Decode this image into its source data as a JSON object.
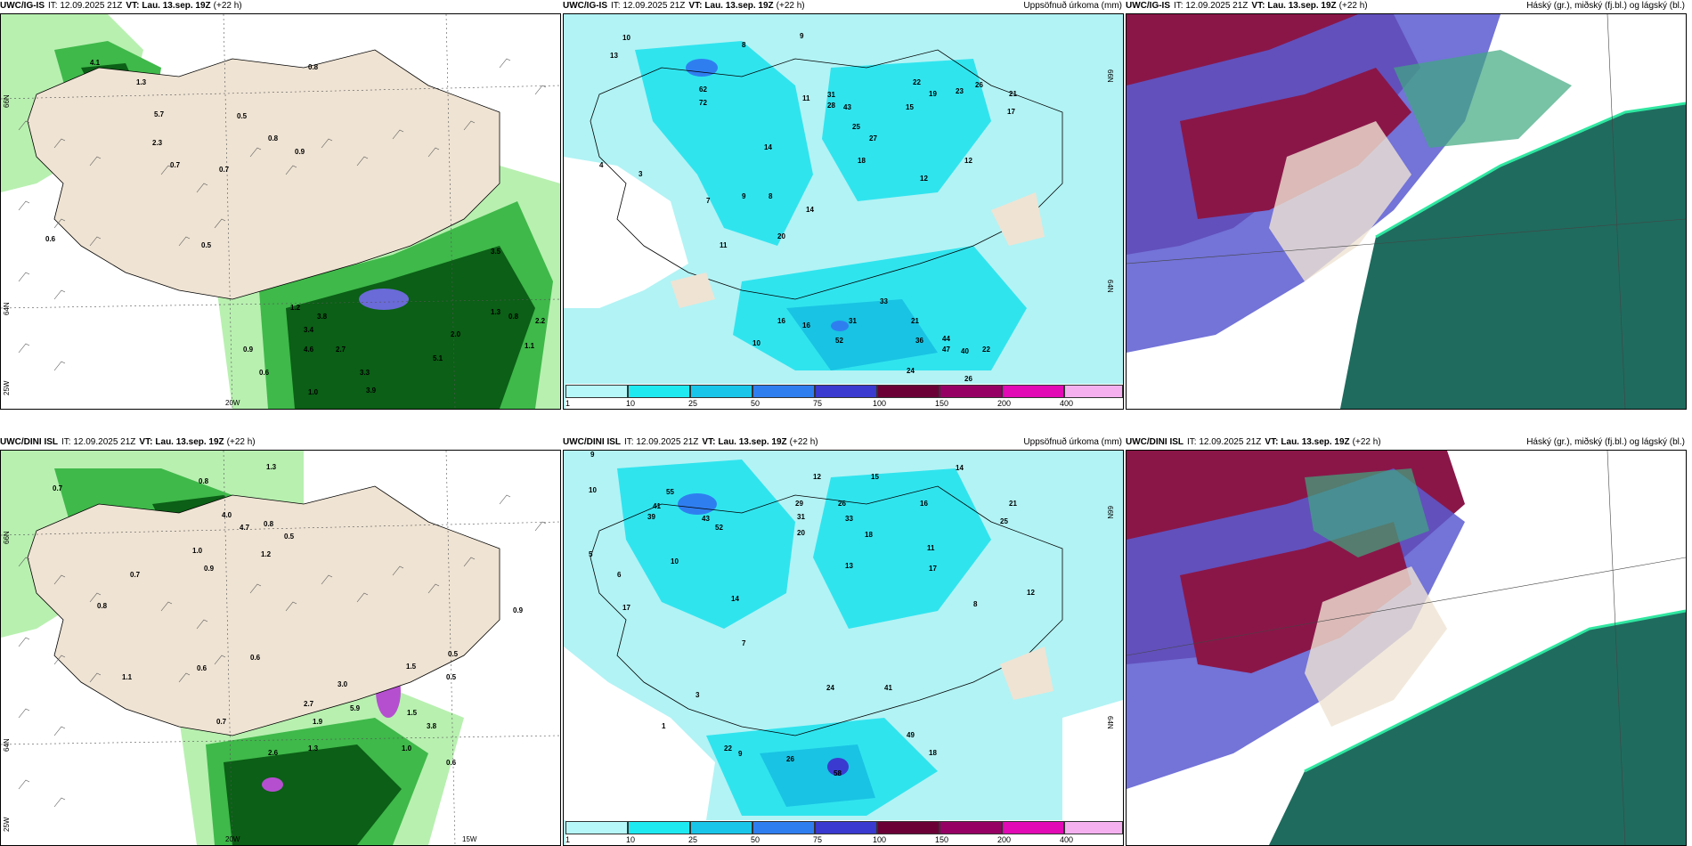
{
  "panels": [
    {
      "id": "p1",
      "model": "UWC/IG-IS",
      "it_label": "IT: 12.09.2025 21Z",
      "vt_label": "VT:",
      "vt": "Lau. 13.sep. 19Z",
      "lead": "(+22 h)",
      "right_title": "",
      "lat_labels": [
        "66N",
        "64N",
        "25W"
      ],
      "lon_labels": [
        "20W"
      ],
      "values": [
        "0.8",
        "4.1",
        "1.3",
        "5.7",
        "2.3",
        "0.7",
        "0.5",
        "0.8",
        "0.9",
        "0.7",
        "0.6",
        "0.5",
        "3.8",
        "1.2",
        "3.4",
        "4.6",
        "2.7",
        "3.3",
        "3.9",
        "1.0",
        "0.6",
        "0.9",
        "5.1",
        "2.0",
        "2.2",
        "1.3",
        "0.8",
        "3.5",
        "1.1"
      ]
    },
    {
      "id": "p2",
      "model": "UWC/IG-IS",
      "it_label": "IT: 12.09.2025 21Z",
      "vt_label": "VT:",
      "vt": "Lau. 13.sep. 19Z",
      "lead": "(+22 h)",
      "right_title": "Uppsöfnuð úrkoma (mm)",
      "lat_labels": [
        "66N",
        "64N"
      ],
      "lon_labels": [],
      "values": [
        "10",
        "13",
        "8",
        "9",
        "11",
        "22",
        "26",
        "23",
        "21",
        "19",
        "17",
        "31",
        "28",
        "43",
        "25",
        "27",
        "14",
        "15",
        "18",
        "12",
        "62",
        "72",
        "8",
        "7",
        "4",
        "3",
        "9",
        "11",
        "20",
        "14",
        "10",
        "16",
        "33",
        "21",
        "36",
        "44",
        "47",
        "40",
        "22",
        "26",
        "31",
        "24",
        "16",
        "52",
        "12"
      ]
    },
    {
      "id": "p3",
      "model": "UWC/IG-IS",
      "it_label": "IT: 12.09.2025 21Z",
      "vt_label": "VT:",
      "vt": "Lau. 13.sep. 19Z",
      "lead": "(+22 h)",
      "right_title": "Háský (gr.), miðský (fj.bl.) og lágský (bl.)",
      "lat_labels": [],
      "lon_labels": [],
      "values": []
    },
    {
      "id": "p4",
      "model": "UWC/DINI ISL",
      "it_label": "IT: 12.09.2025 21Z",
      "vt_label": "VT:",
      "vt": "Lau. 13.sep. 19Z",
      "lead": "(+22 h)",
      "right_title": "",
      "lat_labels": [
        "66N",
        "64N",
        "25W"
      ],
      "lon_labels": [
        "20W",
        "15W"
      ],
      "values": [
        "0.7",
        "0.8",
        "1.3",
        "4.0",
        "4.7",
        "0.8",
        "1.2",
        "0.5",
        "0.7",
        "1.0",
        "0.9",
        "0.8",
        "0.6",
        "1.1",
        "0.6",
        "2.7",
        "3.0",
        "1.9",
        "5.9",
        "1.5",
        "0.5",
        "0.9",
        "3.8",
        "0.7",
        "0.5",
        "2.6",
        "1.3",
        "1.0",
        "0.6",
        "1.5"
      ]
    },
    {
      "id": "p5",
      "model": "UWC/DINI ISL",
      "it_label": "IT: 12.09.2025 21Z",
      "vt_label": "VT:",
      "vt": "Lau. 13.sep. 19Z",
      "lead": "(+22 h)",
      "right_title": "Uppsöfnuð úrkoma (mm)",
      "lat_labels": [
        "66N",
        "64N"
      ],
      "lon_labels": [],
      "values": [
        "9",
        "10",
        "12",
        "15",
        "14",
        "21",
        "25",
        "29",
        "31",
        "26",
        "33",
        "18",
        "20",
        "16",
        "11",
        "17",
        "8",
        "13",
        "55",
        "41",
        "39",
        "43",
        "52",
        "10",
        "6",
        "7",
        "5",
        "14",
        "24",
        "41",
        "49",
        "18",
        "22",
        "26",
        "58",
        "9",
        "1",
        "3",
        "17",
        "12"
      ]
    },
    {
      "id": "p6",
      "model": "UWC/DINI ISL",
      "it_label": "IT: 12.09.2025 21Z",
      "vt_label": "VT:",
      "vt": "Lau. 13.sep. 19Z",
      "lead": "(+22 h)",
      "right_title": "Háský (gr.), miðský (fj.bl.) og lágský (bl.)",
      "lat_labels": [],
      "lon_labels": [],
      "values": []
    }
  ],
  "colorbar": {
    "labels": [
      "1",
      "10",
      "25",
      "50",
      "75",
      "100",
      "150",
      "200",
      "400"
    ],
    "colors": [
      "#b6f7f9",
      "#1ee9f1",
      "#19c6e9",
      "#2f7ef0",
      "#3a3ad0",
      "#6b0037",
      "#960064",
      "#e10ab4",
      "#f5b0f0"
    ]
  },
  "palette": {
    "land": "#efe3d3",
    "precip_light": "#b2f3f5",
    "precip_mid": "#30e4ee",
    "precip_dark": "#19c3e3",
    "green_light": "#b8f0b0",
    "green_mid": "#3fb94a",
    "green_dark": "#0b5f16",
    "cloud_high": "#1f6b5e",
    "cloud_mid": "#5a5ad1",
    "cloud_low": "#8a1648"
  }
}
